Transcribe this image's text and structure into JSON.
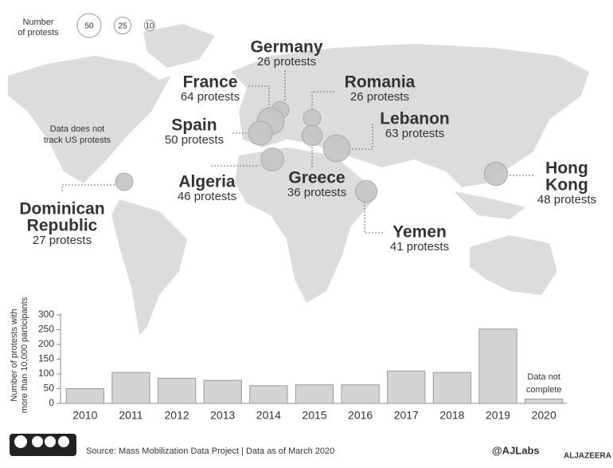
{
  "chart_data": {
    "type": "bar",
    "ylabel": [
      "Number of protests with",
      "more than 10,000 participants"
    ],
    "categories": [
      "2010",
      "2011",
      "2012",
      "2013",
      "2014",
      "2015",
      "2016",
      "2017",
      "2018",
      "2019",
      "2020"
    ],
    "values": [
      50,
      105,
      85,
      78,
      60,
      63,
      63,
      110,
      105,
      252,
      15
    ],
    "color": "#d4d4d4",
    "ylim": [
      0,
      300
    ],
    "yticks": [
      0,
      50,
      100,
      150,
      200,
      250,
      300
    ],
    "annotation": [
      "Data not",
      "complete"
    ]
  },
  "map": {
    "size_legend": {
      "title": [
        "Number",
        "of protests"
      ],
      "sizes": [
        50,
        25,
        10
      ]
    },
    "note": [
      "Data does not",
      "track US protests"
    ],
    "countries": [
      {
        "name": [
          "Germany"
        ],
        "protests": 26,
        "label": "26 protests"
      },
      {
        "name": [
          "France"
        ],
        "protests": 64,
        "label": "64 protests"
      },
      {
        "name": [
          "Romania"
        ],
        "protests": 26,
        "label": "26 protests"
      },
      {
        "name": [
          "Spain"
        ],
        "protests": 50,
        "label": "50 protests"
      },
      {
        "name": [
          "Lebanon"
        ],
        "protests": 63,
        "label": "63 protests"
      },
      {
        "name": [
          "Algeria"
        ],
        "protests": 46,
        "label": "46 protests"
      },
      {
        "name": [
          "Greece"
        ],
        "protests": 36,
        "label": "36 protests"
      },
      {
        "name": [
          "Yemen"
        ],
        "protests": 41,
        "label": "41 protests"
      },
      {
        "name": [
          "Hong",
          "Kong"
        ],
        "protests": 48,
        "label": "48 protests"
      },
      {
        "name": [
          "Dominican",
          "Republic"
        ],
        "protests": 27,
        "label": "27 protests"
      }
    ]
  },
  "footer": {
    "source": "Source: Mass Mobilization Data Project | Data as of March 2020",
    "handle": "@AJLabs",
    "brand": "ALJAZEERA"
  }
}
